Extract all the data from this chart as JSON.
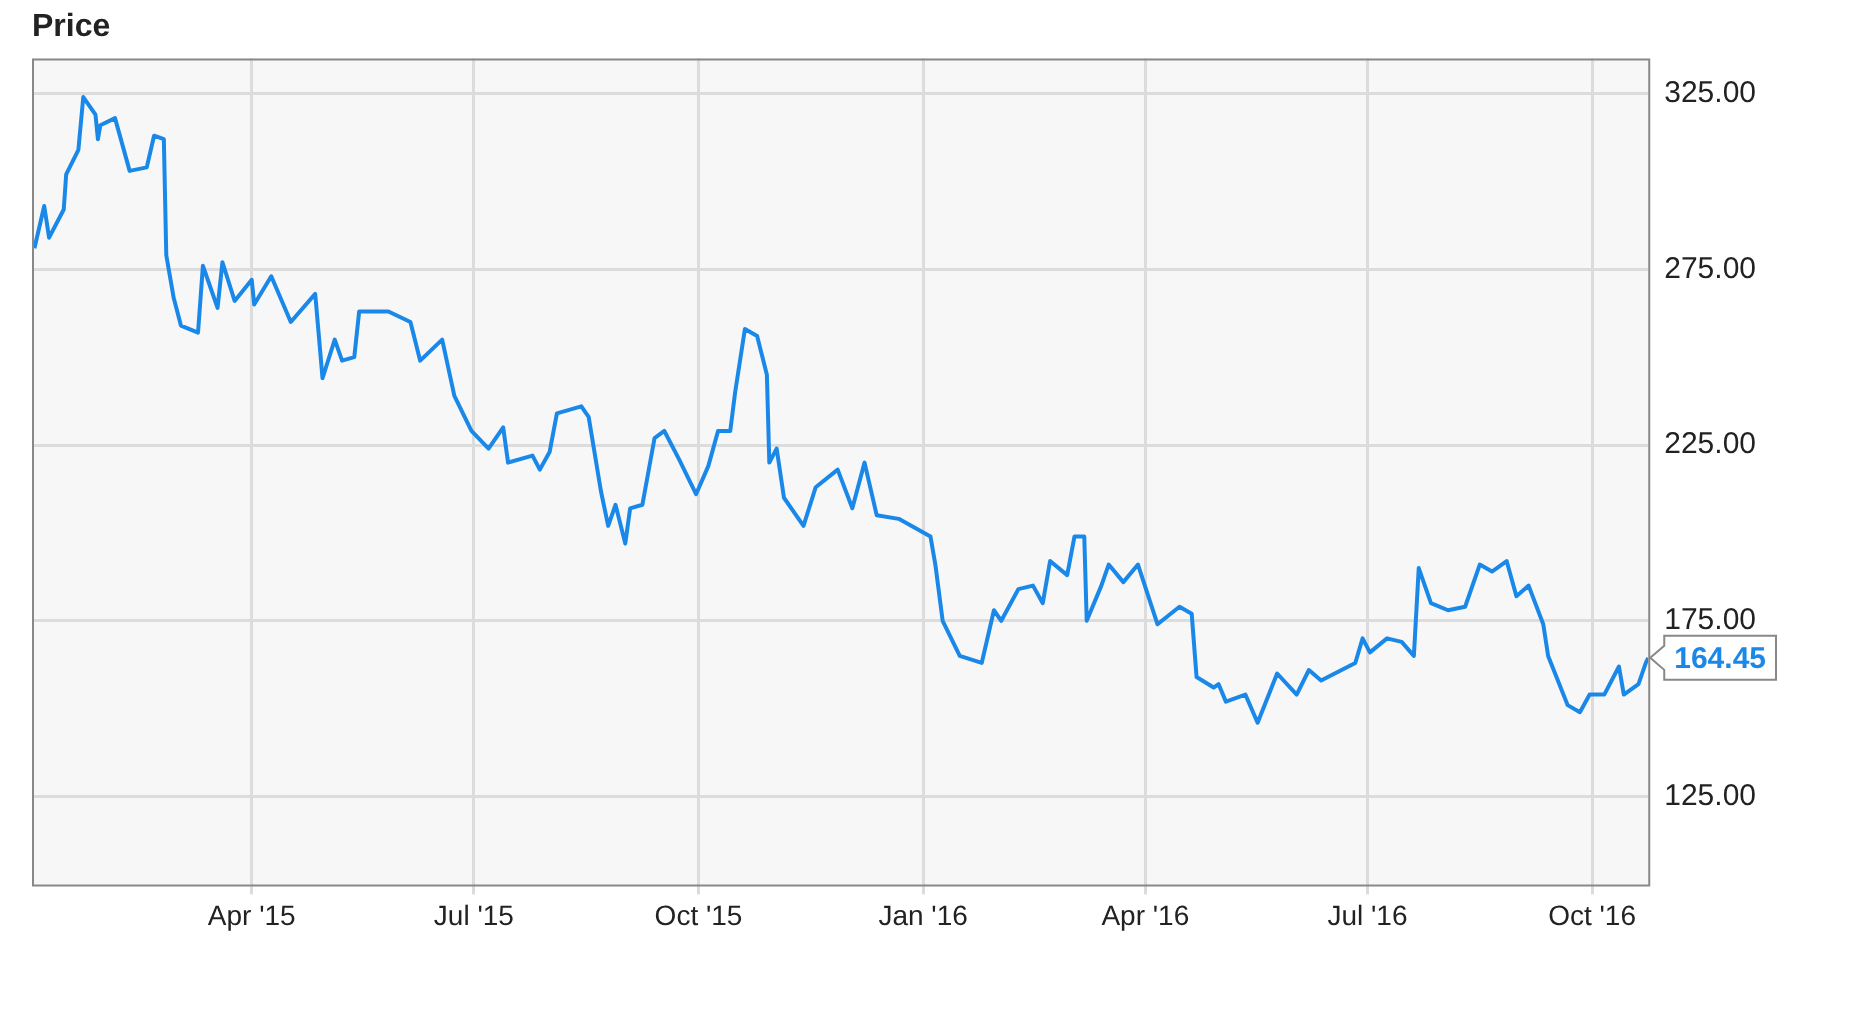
{
  "chart_data": {
    "type": "line",
    "title": "Price",
    "color": "#1a88e8",
    "legend": false,
    "grid": true,
    "marker": "none",
    "line_style": "solid",
    "x": [
      "2015-01-02",
      "2015-01-06",
      "2015-01-08",
      "2015-01-14",
      "2015-01-15",
      "2015-01-20",
      "2015-01-22",
      "2015-01-27",
      "2015-01-28",
      "2015-01-29",
      "2015-02-04",
      "2015-02-10",
      "2015-02-17",
      "2015-02-20",
      "2015-02-24",
      "2015-02-25",
      "2015-02-28",
      "2015-03-03",
      "2015-03-10",
      "2015-03-12",
      "2015-03-18",
      "2015-03-20",
      "2015-03-25",
      "2015-04-01",
      "2015-04-02",
      "2015-04-09",
      "2015-04-17",
      "2015-04-27",
      "2015-04-30",
      "2015-05-05",
      "2015-05-08",
      "2015-05-13",
      "2015-05-15",
      "2015-05-27",
      "2015-06-05",
      "2015-06-09",
      "2015-06-18",
      "2015-06-23",
      "2015-06-30",
      "2015-07-07",
      "2015-07-13",
      "2015-07-15",
      "2015-07-25",
      "2015-07-28",
      "2015-08-01",
      "2015-08-04",
      "2015-08-14",
      "2015-08-17",
      "2015-08-22",
      "2015-08-25",
      "2015-08-28",
      "2015-09-01",
      "2015-09-03",
      "2015-09-08",
      "2015-09-13",
      "2015-09-17",
      "2015-09-23",
      "2015-09-30",
      "2015-10-05",
      "2015-10-09",
      "2015-10-14",
      "2015-10-16",
      "2015-10-20",
      "2015-10-25",
      "2015-10-29",
      "2015-10-30",
      "2015-11-02",
      "2015-11-05",
      "2015-11-13",
      "2015-11-18",
      "2015-11-27",
      "2015-12-03",
      "2015-12-08",
      "2015-12-13",
      "2015-12-22",
      "2016-01-04",
      "2016-01-06",
      "2016-01-09",
      "2016-01-16",
      "2016-01-25",
      "2016-01-30",
      "2016-02-02",
      "2016-02-09",
      "2016-02-15",
      "2016-02-19",
      "2016-02-22",
      "2016-02-29",
      "2016-03-03",
      "2016-03-07",
      "2016-03-08",
      "2016-03-14",
      "2016-03-17",
      "2016-03-23",
      "2016-03-29",
      "2016-04-06",
      "2016-04-15",
      "2016-04-20",
      "2016-04-22",
      "2016-04-29",
      "2016-05-01",
      "2016-05-04",
      "2016-05-12",
      "2016-05-17",
      "2016-05-25",
      "2016-06-02",
      "2016-06-07",
      "2016-06-12",
      "2016-06-26",
      "2016-06-29",
      "2016-07-02",
      "2016-07-09",
      "2016-07-15",
      "2016-07-20",
      "2016-07-22",
      "2016-07-27",
      "2016-08-03",
      "2016-08-10",
      "2016-08-16",
      "2016-08-21",
      "2016-08-27",
      "2016-08-31",
      "2016-09-05",
      "2016-09-11",
      "2016-09-13",
      "2016-09-21",
      "2016-09-26",
      "2016-09-30",
      "2016-10-06",
      "2016-10-12",
      "2016-10-14",
      "2016-10-20",
      "2016-10-23",
      "2016-10-24"
    ],
    "values": [
      281,
      293,
      284,
      292,
      302,
      309,
      324,
      319,
      312,
      316,
      318,
      303,
      304,
      313,
      312,
      279,
      267,
      259,
      257,
      276,
      264,
      277,
      266,
      272,
      265,
      273,
      260,
      268,
      244,
      255,
      249,
      250,
      263,
      263,
      260,
      249,
      255,
      239,
      229,
      224,
      230,
      220,
      222,
      218,
      223,
      234,
      236,
      233,
      212,
      202,
      208,
      197,
      207,
      208,
      227,
      229,
      221,
      211,
      219,
      229,
      229,
      240,
      258,
      256,
      245,
      220,
      224,
      210,
      202,
      213,
      218,
      207,
      220,
      205,
      204,
      199,
      191,
      175,
      165,
      163,
      178,
      175,
      184,
      185,
      180,
      192,
      188,
      199,
      199,
      175,
      185,
      191,
      186,
      191,
      174,
      179,
      177,
      159,
      156,
      157,
      152,
      154,
      146,
      160,
      154,
      161,
      158,
      163,
      170,
      166,
      170,
      169,
      165,
      190,
      180,
      178,
      179,
      191,
      189,
      192,
      182,
      185,
      174,
      165,
      151,
      149,
      154,
      154,
      162,
      154,
      157,
      163,
      164.45
    ],
    "xlim": [
      "2015-01-01",
      "2016-10-24"
    ],
    "xticks": [
      {
        "value": "2015-04-01",
        "label": "Apr '15"
      },
      {
        "value": "2015-07-01",
        "label": "Jul '15"
      },
      {
        "value": "2015-10-01",
        "label": "Oct '15"
      },
      {
        "value": "2016-01-01",
        "label": "Jan '16"
      },
      {
        "value": "2016-04-01",
        "label": "Apr '16"
      },
      {
        "value": "2016-07-01",
        "label": "Jul '16"
      },
      {
        "value": "2016-10-01",
        "label": "Oct '16"
      }
    ],
    "ylim": [
      100,
      335
    ],
    "yticks": [
      {
        "value": 125,
        "label": "125.00"
      },
      {
        "value": 175,
        "label": "175.00"
      },
      {
        "value": 225,
        "label": "225.00"
      },
      {
        "value": 275,
        "label": "275.00"
      },
      {
        "value": 325,
        "label": "325.00"
      }
    ],
    "annotations": [
      {
        "text": "164.45",
        "x": "2016-10-24",
        "y": 164.45
      }
    ]
  }
}
